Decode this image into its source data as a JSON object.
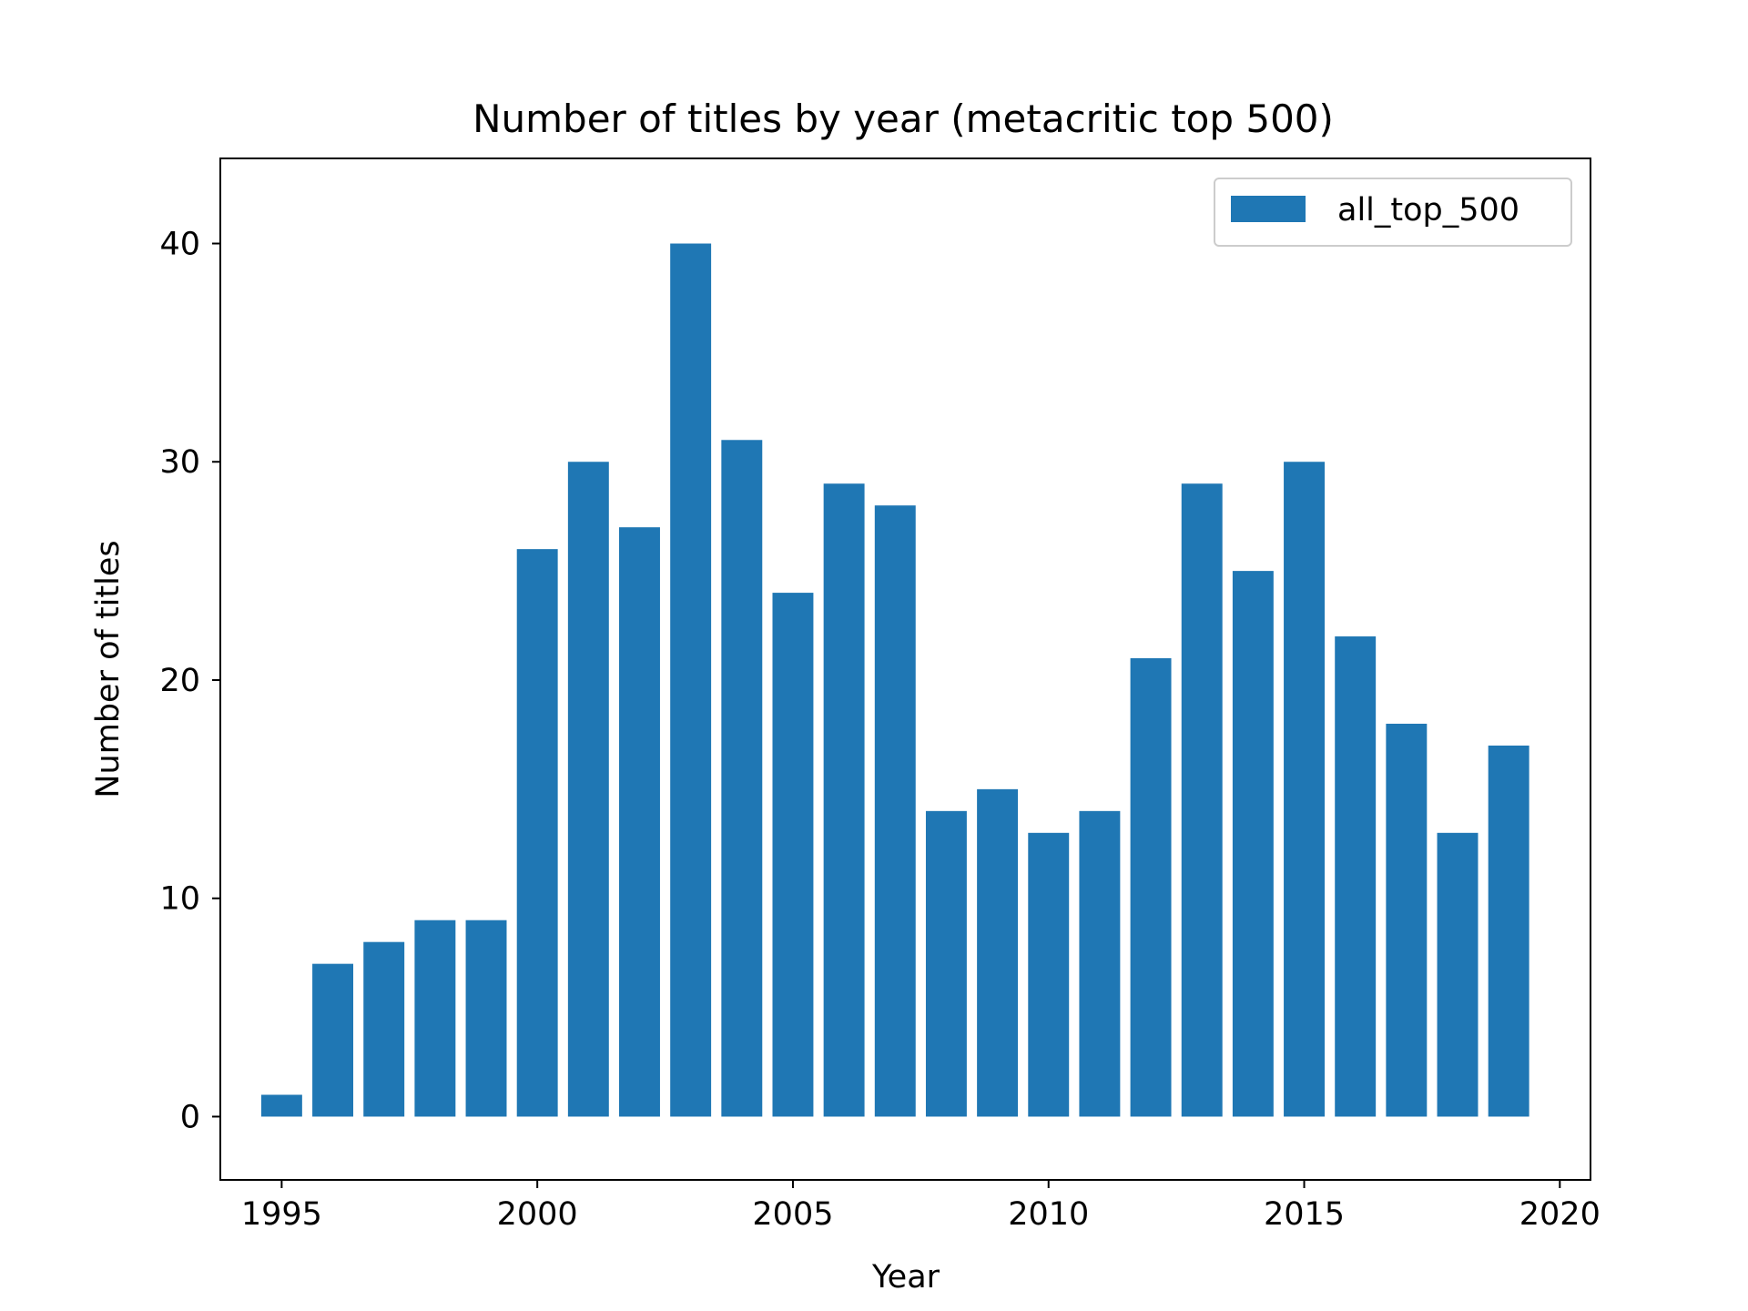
{
  "chart_data": {
    "type": "bar",
    "title": "Number of titles by year (metacritic top 500)",
    "xlabel": "Year",
    "ylabel": "Number of titles",
    "x": [
      1995,
      1996,
      1997,
      1998,
      1999,
      2000,
      2001,
      2002,
      2003,
      2004,
      2005,
      2006,
      2007,
      2008,
      2009,
      2010,
      2011,
      2012,
      2013,
      2014,
      2015,
      2016,
      2017,
      2018,
      2019
    ],
    "series": [
      {
        "name": "all_top_500",
        "color": "#1f77b4",
        "values": [
          1,
          7,
          8,
          9,
          9,
          26,
          30,
          27,
          40,
          31,
          24,
          29,
          28,
          14,
          15,
          13,
          14,
          21,
          29,
          25,
          30,
          22,
          18,
          13,
          17
        ]
      }
    ],
    "xlim": [
      1993.8,
      2020.6
    ],
    "ylim": [
      -2.9,
      43.9
    ],
    "xticks": [
      1995,
      2000,
      2005,
      2010,
      2015,
      2020
    ],
    "yticks": [
      0,
      10,
      20,
      30,
      40
    ],
    "grid": false,
    "legend_position": "top-right"
  }
}
